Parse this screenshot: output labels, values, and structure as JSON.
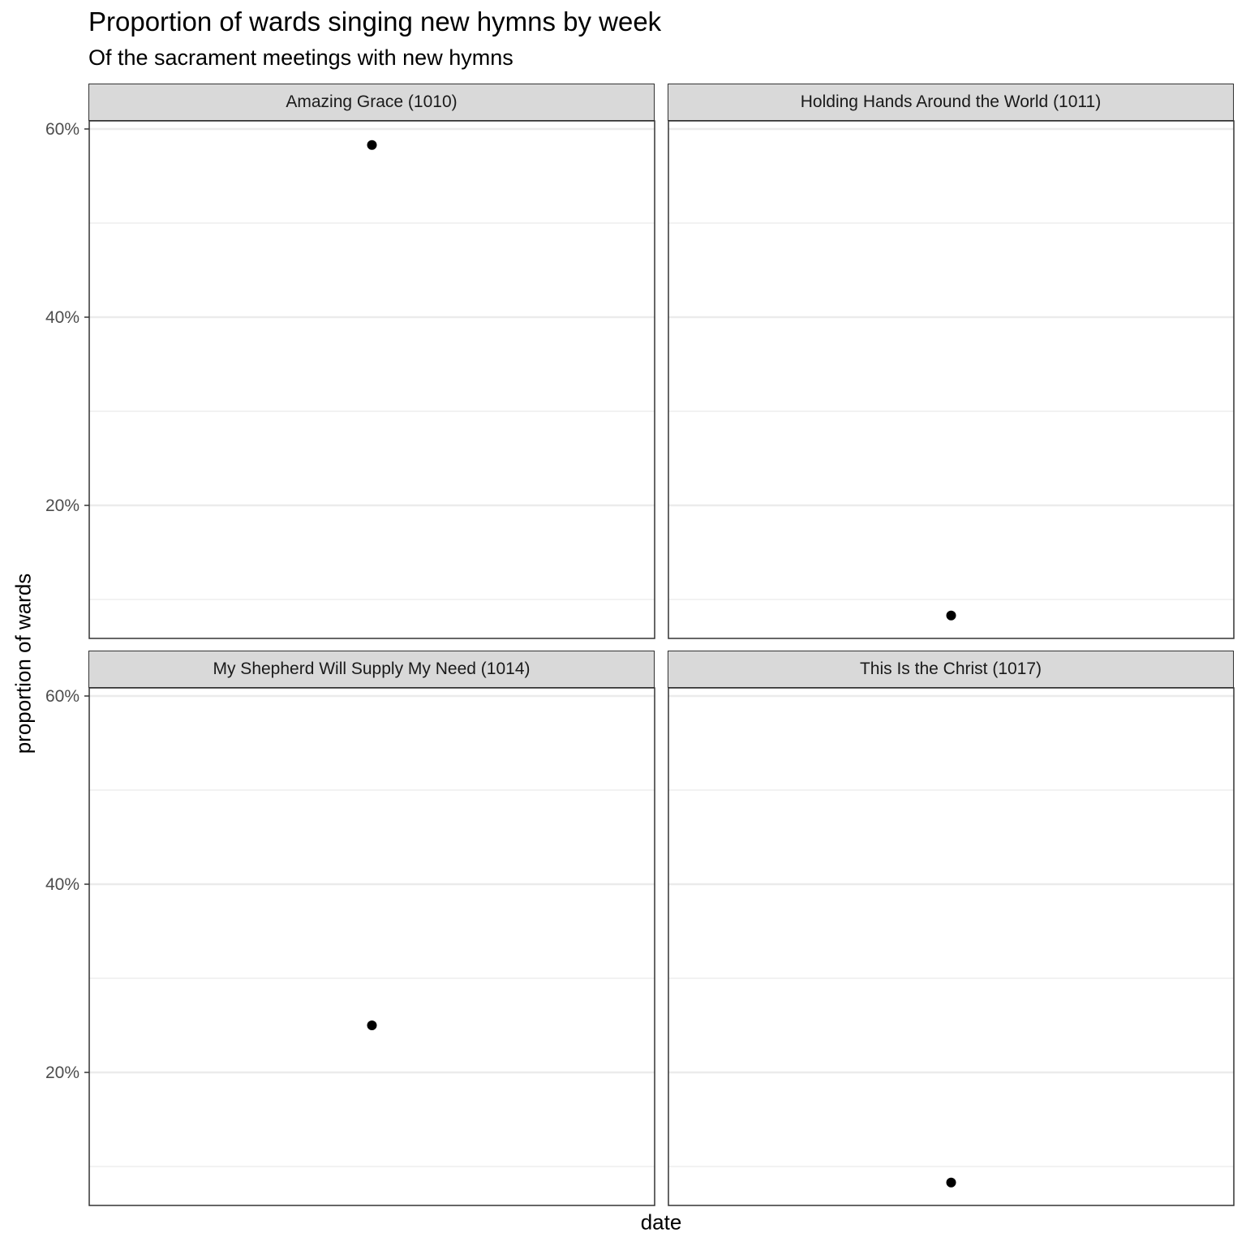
{
  "chart_data": {
    "type": "scatter",
    "title": "Proportion of wards singing new hymns by week",
    "subtitle": "Of the sacrament meetings with new hymns",
    "xlabel": "date",
    "ylabel": "proportion of wards",
    "ylim": [
      0.056,
      0.6
    ],
    "y_ticks": [
      0.2,
      0.4,
      0.6
    ],
    "y_tick_labels": [
      "20%",
      "40%",
      "60%"
    ],
    "grid": true,
    "facets": [
      {
        "label": "Amazing Grace (1010)",
        "points": [
          {
            "y": 0.583
          }
        ]
      },
      {
        "label": "Holding Hands Around the World (1011)",
        "points": [
          {
            "y": 0.083
          }
        ]
      },
      {
        "label": "My Shepherd Will Supply My Need (1014)",
        "points": [
          {
            "y": 0.25
          }
        ]
      },
      {
        "label": "This Is the Christ (1017)",
        "points": [
          {
            "y": 0.083
          }
        ]
      }
    ]
  }
}
